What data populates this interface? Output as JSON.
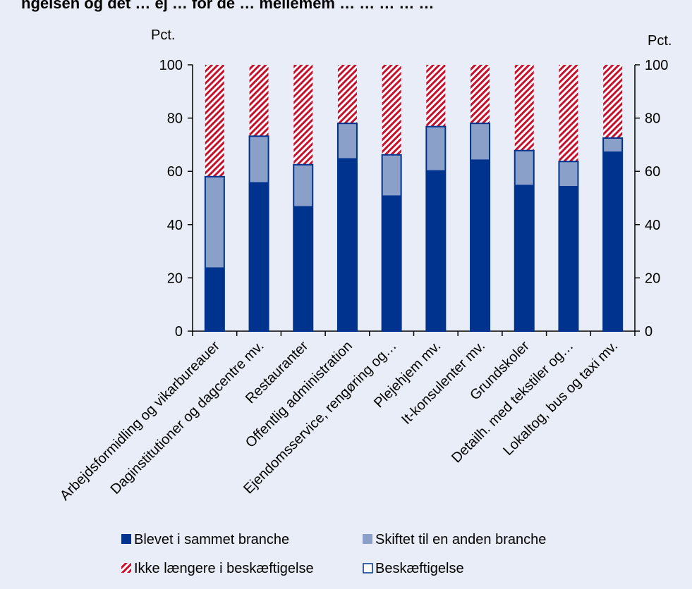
{
  "header": {
    "title_fragment": "ngelsen og det … ej … for de … mellemem … … … … …"
  },
  "chart_data": {
    "type": "bar",
    "stacked": true,
    "categories": [
      "Arbejdsformidling og vikarbureauer",
      "Daginstitutioner og dagcentre mv.",
      "Restauranter",
      "Offentlig administration",
      "Ejendomsservice, rengøring og…",
      "Plejehjem mv.",
      "It-konsulenter mv.",
      "Grundskoler",
      "Detailh. med tekstiler og…",
      "Lokaltog, bus og taxi mv."
    ],
    "series": [
      {
        "name": "Blevet i sammet branche",
        "values": [
          24,
          56,
          47,
          65,
          51,
          60.5,
          64.5,
          55,
          54.5,
          67.5
        ],
        "color": "#00338d",
        "pattern": "solid"
      },
      {
        "name": "Skiftet til en anden branche",
        "values": [
          34,
          17.2,
          15.5,
          13,
          15.2,
          16.3,
          13.5,
          12.8,
          9.2,
          5
        ],
        "color": "#8aa0c8",
        "pattern": "solid"
      },
      {
        "name": "Ikke længere i beskæftigelse",
        "values": [
          42,
          26.8,
          37.5,
          22,
          33.8,
          23.2,
          22,
          32.2,
          36.3,
          27.5
        ],
        "color": "#c8102e",
        "pattern": "hatch"
      }
    ],
    "outline_series": {
      "name": "Beskæftigelse",
      "values": [
        58,
        73.2,
        62.5,
        78,
        66.2,
        76.8,
        78,
        67.8,
        63.7,
        72.5
      ],
      "color": "#00338d"
    },
    "left_axis": {
      "label": "Pct.",
      "ylim": [
        0,
        100
      ],
      "ticks": [
        "0",
        "20",
        "40",
        "60",
        "80",
        "100"
      ]
    },
    "right_axis": {
      "label": "Pct.",
      "ylim": [
        0,
        100
      ],
      "ticks": [
        "0",
        "20",
        "40",
        "60",
        "80",
        "100"
      ]
    },
    "grid": false,
    "legend": {
      "placement": "bottom",
      "items": [
        {
          "label": "Blevet i sammet branche",
          "symbol": "filled-dark"
        },
        {
          "label": "Skiftet til en anden branche",
          "symbol": "filled-light"
        },
        {
          "label": "Ikke længere i beskæftigelse",
          "symbol": "hatched-red"
        },
        {
          "label": "Beskæftigelse",
          "symbol": "outline"
        }
      ]
    }
  }
}
